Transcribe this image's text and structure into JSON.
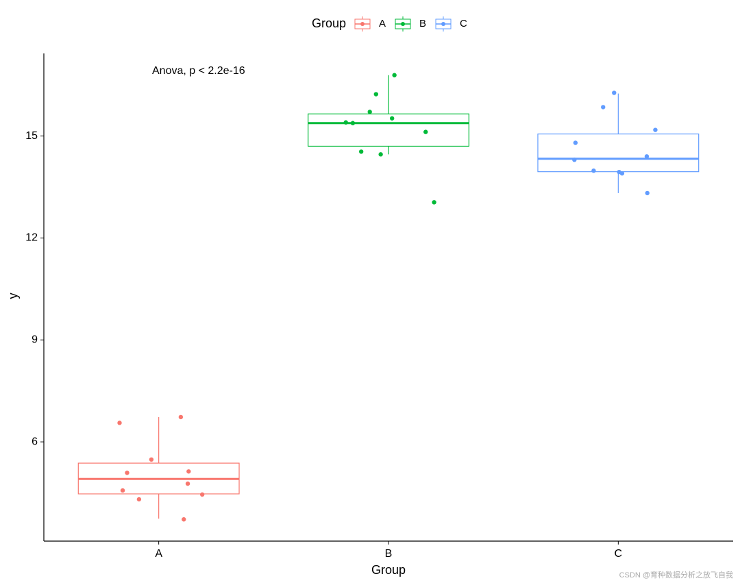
{
  "chart_data": {
    "type": "boxplot",
    "legend_title": "Group",
    "legend_position": "top",
    "x_label": "Group",
    "y_label": "y",
    "annotation": "Anova, p < 2.2e-16",
    "watermark": "CSDN @育种数据分析之放飞自我",
    "categories": [
      "A",
      "B",
      "C"
    ],
    "ylim": [
      3.08,
      17.43
    ],
    "yticks": [
      6,
      9,
      12,
      15
    ],
    "grid": false,
    "series": [
      {
        "name": "A",
        "color": "#F8766D",
        "whislo": 3.74,
        "q1": 4.47,
        "med": 4.91,
        "q3": 5.375,
        "whishi": 6.73,
        "points": [
          6.73,
          6.56,
          5.48,
          5.13,
          5.09,
          4.77,
          4.57,
          4.45,
          4.31,
          3.72
        ]
      },
      {
        "name": "B",
        "color": "#00BA38",
        "whislo": 14.46,
        "q1": 14.7,
        "med": 15.38,
        "q3": 15.65,
        "whishi": 16.79,
        "points": [
          16.79,
          16.23,
          15.71,
          15.52,
          15.38,
          15.4,
          15.12,
          14.54,
          14.46,
          13.05
        ]
      },
      {
        "name": "C",
        "color": "#619CFF",
        "whislo": 13.32,
        "q1": 13.95,
        "med": 14.33,
        "q3": 15.06,
        "whishi": 16.25,
        "points": [
          16.27,
          15.85,
          15.18,
          14.8,
          14.4,
          14.3,
          13.9,
          13.98,
          13.94,
          13.32
        ]
      }
    ]
  }
}
